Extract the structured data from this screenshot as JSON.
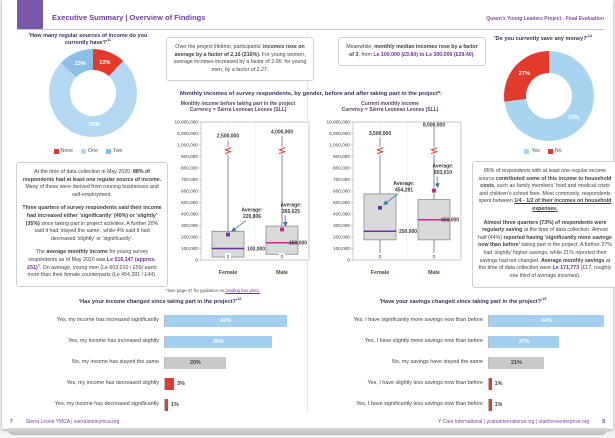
{
  "header": {
    "tab_title": "Executive Summary | Overview of Findings",
    "right_title": "Queen's Young Leaders Project - Final Evaluation"
  },
  "page_left": {
    "number": "7",
    "footer": "Sierra Leone YMCA | sierraleoneymca.org"
  },
  "page_right": {
    "number": "8",
    "footer": "Y Care International | ycareinternational.org | starthereenterprise.org"
  },
  "income_sources_pie": {
    "question": "'How many regular sources of income do you currently have?'",
    "sup": "11",
    "slices": [
      {
        "label": "None",
        "pct": 12,
        "color": "#e23b2e"
      },
      {
        "label": "One",
        "pct": 75,
        "color": "#b5d8f2"
      },
      {
        "label": "Two",
        "pct": 13,
        "color": "#8cbfe8"
      }
    ]
  },
  "savings_pie": {
    "question": "'Do you currently save any money?'",
    "sup": "14",
    "slices": [
      {
        "label": "Yes",
        "pct": 73,
        "color": "#a9d4f0"
      },
      {
        "label": "No",
        "pct": 27,
        "color": "#e23b2e"
      }
    ]
  },
  "left_text": {
    "paragraphs": [
      [
        {
          "t": "At the time of data collection in May 2020, "
        },
        {
          "t": "88% of respondents had at least one regular source of income.",
          "b": 1
        },
        {
          "t": " Many of these were derived from running businesses and self-employment."
        }
      ],
      [
        {
          "t": "Three quarters of survey respondents said their income had increased either 'significantly' (40%) or 'slightly' (35%)",
          "b": 1
        },
        {
          "t": " since taking part in project activities. A further 20% said it had 'stayed the same', while 4% said it had decreased 'slightly' or 'significantly'."
        }
      ],
      [
        {
          "t": "The "
        },
        {
          "t": "average monthly income",
          "b": 1
        },
        {
          "t": " for young survey respondents as of May 2020 was "
        },
        {
          "t": "Le 516,147 (approx. £51)",
          "b": 1,
          "p": 1
        },
        {
          "t": "5",
          "sup": 1
        },
        {
          "t": ". On average, young men (Le 603,010 / £59) earnt more than their female counterparts (Le 454,281 / £44)."
        }
      ]
    ]
  },
  "over_project_box": [
    {
      "t": "Over the project lifetime, participants' "
    },
    {
      "t": "incomes rose on average by a factor of 2.16 (216%).",
      "b": 1
    },
    {
      "t": " For young women, average incomes increased by a factor of 2.06; for young men, by a factor of 2.27."
    }
  ],
  "meanwhile_box": [
    {
      "t": "Meanwhile, "
    },
    {
      "t": "monthly median incomes rose by a factor of 3",
      "b": 1
    },
    {
      "t": ", from "
    },
    {
      "t": "Le 100,000 (£9.80) to Le 300,000 (£29.40)",
      "b": 1,
      "p": 1
    },
    {
      "t": "."
    }
  ],
  "household_text": {
    "paragraphs": [
      [
        {
          "t": "95% of respondents with at least one regular income source "
        },
        {
          "t": "contributed some of this income to household costs",
          "b": 1
        },
        {
          "t": ", such as family members' food and medical costs and children's school fees. Most commonly, respondents spent between "
        },
        {
          "t": "1/4 - 1/2 of their incomes on household expenses.",
          "b": 1,
          "u": 1
        }
      ],
      [
        {
          "t": "Almost three quarters (73%) of respondents were regularly saving",
          "b": 1
        },
        {
          "t": " at the time of data collection. Almost half (44%) "
        },
        {
          "t": "reported having 'significantly more savings now than before'",
          "b": 1
        },
        {
          "t": " taking part in the project. A further 27% had 'slightly' higher savings, while 21% reported their savings had not changed. "
        },
        {
          "t": "Average monthly savings",
          "b": 1
        },
        {
          "t": " at the time of data collection were "
        },
        {
          "t": "Le 171,773",
          "b": 1,
          "p": 1
        },
        {
          "t": " (£17, roughly one third of average incomes)."
        }
      ]
    ]
  },
  "boxplots": {
    "main_title": "Monthly incomes of survey respondents, by gender, before and after taking part in the project*:",
    "tick_values": [
      0,
      100000,
      200000,
      300000,
      400000,
      500000,
      600000,
      700000,
      800000,
      900000,
      1000000,
      5000000,
      10000000
    ],
    "y_ticks": [
      "10,000,000",
      "5,000,000",
      "1,000,000",
      "900,000",
      "800,000",
      "700,000",
      "600,000",
      "500,000",
      "400,000",
      "300,000",
      "200,000",
      "100,000",
      "0"
    ],
    "footnote": {
      "prefix": "*See page 47 for guidance on ",
      "link": "reading box plots."
    },
    "charts": [
      {
        "title_line1": "Monthly income before taking part in the project",
        "title_line2": "Currency = Sierra Leonean Leones (SLL)",
        "groups": [
          {
            "name": "Female",
            "min": 0,
            "q1": 25000,
            "median": 100000,
            "q3": 250000,
            "max": 2500000,
            "max_label": "2,500,000",
            "median_label": "100,000",
            "avg": 220806,
            "avg_label1": "Average:",
            "avg_label2": "220,806",
            "accent": "#7030a0"
          },
          {
            "name": "Male",
            "min": 0,
            "q1": 50000,
            "median": 150000,
            "q3": 295000,
            "max": 4000000,
            "max_label": "4,000,000",
            "median_label": "150,000",
            "avg": 265625,
            "avg_label1": "Average:",
            "avg_label2": "265,625",
            "accent": "#c9258c"
          }
        ]
      },
      {
        "title_line1": "Current monthly income",
        "title_line2": "Currency = Sierra Leonean Leones (SLL)",
        "groups": [
          {
            "name": "Female",
            "min": 0,
            "q1": 175000,
            "median": 250000,
            "q3": 575000,
            "max": 3500000,
            "max_label": "3,500,000",
            "median_label": "250,000",
            "avg": 454281,
            "avg_label1": "Average:",
            "avg_label2": "454,281",
            "accent": "#7030a0"
          },
          {
            "name": "Male",
            "min": 0,
            "q1": 175000,
            "median": 350000,
            "q3": 525000,
            "max": 8000000,
            "max_label": "8,000,000",
            "median_label": "350,000",
            "avg": 603010,
            "avg_label1": "Average:",
            "avg_label2": "603,010",
            "accent": "#c9258c"
          }
        ]
      }
    ]
  },
  "income_change_chart": {
    "title": "'Has your income changed since taking part in the project?'",
    "sup": "12",
    "bars": [
      {
        "label": "Yes, my income has increased significantly",
        "value": 40,
        "display": "40%",
        "color": "#a3d0ef",
        "label_style": "inside-light"
      },
      {
        "label": "Yes, my income has increased slightly",
        "value": 35,
        "display": "35%",
        "color": "#a3d0ef",
        "label_style": "inside-light"
      },
      {
        "label": "No, my income has stayed the same",
        "value": 20,
        "display": "20%",
        "color": "#c9c9c9",
        "label_style": "inside-dark"
      },
      {
        "label": "Yes, my income has decreased slightly",
        "value": 3,
        "display": "3%",
        "color": "#e23b2e",
        "label_style": "outside"
      },
      {
        "label": "Yes, my income has decreased significantly",
        "value": 1,
        "display": "1%",
        "color": "#e23b2e",
        "label_style": "outside"
      }
    ]
  },
  "savings_change_chart": {
    "title": "'Have your savings changed since taking part in the project?'",
    "sup": "15",
    "bars": [
      {
        "label": "Yes, I have significantly more savings now than before",
        "value": 44,
        "display": "44%",
        "color": "#a3d0ef",
        "label_style": "inside-light"
      },
      {
        "label": "Yes, I have slightly more savings now than before",
        "value": 27,
        "display": "27%",
        "color": "#a3d0ef",
        "label_style": "inside-light"
      },
      {
        "label": "No, my savings have stayed the same",
        "value": 21,
        "display": "21%",
        "color": "#c9c9c9",
        "label_style": "inside-dark"
      },
      {
        "label": "Yes, I have slightly less savings now than before",
        "value": 1,
        "display": "1%",
        "color": "#e23b2e",
        "label_style": "outside"
      },
      {
        "label": "Yes, I have significantly less savings now than before",
        "value": 1,
        "display": "1%",
        "color": "#e23b2e",
        "label_style": "outside"
      }
    ]
  }
}
